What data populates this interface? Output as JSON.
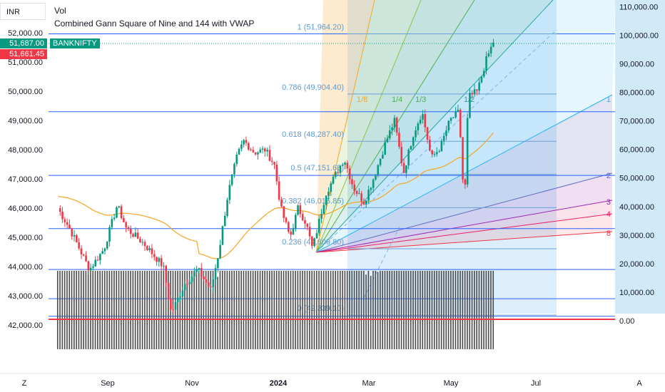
{
  "header": {
    "currency": "INR",
    "indicator1": "Vol",
    "indicator2": "Combined Gann Square of Nine and 144 with VWAP"
  },
  "price_badges": {
    "symbol": "BANKNIFTY",
    "last_price": "51,687.00",
    "second_price": "51,661.45",
    "last_price_color": "#089981",
    "second_price_color": "#f23645"
  },
  "bottom_bar": {
    "left_icon_label": "Z",
    "right_icon_label": "A"
  },
  "colors": {
    "up": "#089981",
    "down": "#f23645",
    "vwap": "#f5a623",
    "fib_line": "#5b9bd5",
    "grid": "#2962ff",
    "volume": "#4a4a4a"
  },
  "chart_data": {
    "type": "candlestick",
    "left_axis": {
      "labels": [
        "52,000.00",
        "51,000.00",
        "50,000.00",
        "49,000.00",
        "48,000.00",
        "47,000.00",
        "46,000.00",
        "45,000.00",
        "44,000.00",
        "43,000.00",
        "42,000.00"
      ],
      "range": [
        41300,
        52500
      ]
    },
    "right_axis": {
      "labels": [
        "110,000.00",
        "100,000.00",
        "90,000.00",
        "80,000.00",
        "70,000.00",
        "60,000.00",
        "50,000.00",
        "40,000.00",
        "30,000.00",
        "20,000.00",
        "10,000.00",
        "0.00"
      ],
      "range": [
        0,
        110000
      ]
    },
    "x_axis": {
      "labels": [
        "Sep",
        "Nov",
        "2024",
        "Mar",
        "May",
        "Jul"
      ]
    },
    "fib_levels": [
      {
        "label": "1 (51,964.20)",
        "price": 51964.2
      },
      {
        "label": "0.786 (49,904.40)",
        "price": 49904.4
      },
      {
        "label": "0.618 (48,287.40)",
        "price": 48287.4
      },
      {
        "label": "0.5 (47,151.65)",
        "price": 47151.65
      },
      {
        "label": "0.382 (46,015.85)",
        "price": 46015.85
      },
      {
        "label": "0.236 (44,609.80)",
        "price": 44609.8
      },
      {
        "label": "0 (42,339.10)",
        "price": 42339.1
      }
    ],
    "horizontal_lines": [
      51964,
      49300,
      47120,
      45300,
      43900,
      42900,
      42300
    ],
    "fan_labels_top": [
      "1/8",
      "1/4",
      "1/3",
      "1/2"
    ],
    "fan_labels_right": [
      "1",
      "2",
      "3",
      "4",
      "8"
    ],
    "close_path_anchors": [
      [
        "2023-08-01",
        46000
      ],
      [
        "2023-08-10",
        45300
      ],
      [
        "2023-08-25",
        43900
      ],
      [
        "2023-09-05",
        44600
      ],
      [
        "2023-09-15",
        46100
      ],
      [
        "2023-09-22",
        45300
      ],
      [
        "2023-10-05",
        44800
      ],
      [
        "2023-10-20",
        44000
      ],
      [
        "2023-10-26",
        42400
      ],
      [
        "2023-11-05",
        43400
      ],
      [
        "2023-11-15",
        43900
      ],
      [
        "2023-11-25",
        43200
      ],
      [
        "2023-12-01",
        44500
      ],
      [
        "2023-12-08",
        46500
      ],
      [
        "2023-12-15",
        47800
      ],
      [
        "2023-12-20",
        48300
      ],
      [
        "2023-12-28",
        47900
      ],
      [
        "2024-01-05",
        48000
      ],
      [
        "2024-01-12",
        47500
      ],
      [
        "2024-01-17",
        46000
      ],
      [
        "2024-01-24",
        45000
      ],
      [
        "2024-01-30",
        46000
      ],
      [
        "2024-02-05",
        45500
      ],
      [
        "2024-02-10",
        44600
      ],
      [
        "2024-02-20",
        46500
      ],
      [
        "2024-02-27",
        47100
      ],
      [
        "2024-03-05",
        47700
      ],
      [
        "2024-03-12",
        46700
      ],
      [
        "2024-03-20",
        46200
      ],
      [
        "2024-03-27",
        47000
      ],
      [
        "2024-04-05",
        48200
      ],
      [
        "2024-04-12",
        49000
      ],
      [
        "2024-04-19",
        47200
      ],
      [
        "2024-04-26",
        48500
      ],
      [
        "2024-05-03",
        49300
      ],
      [
        "2024-05-10",
        47700
      ],
      [
        "2024-05-17",
        48100
      ],
      [
        "2024-05-24",
        49000
      ],
      [
        "2024-05-31",
        49300
      ],
      [
        "2024-06-04",
        46000
      ],
      [
        "2024-06-07",
        49800
      ],
      [
        "2024-06-14",
        50000
      ],
      [
        "2024-06-20",
        51000
      ],
      [
        "2024-06-26",
        51687
      ]
    ]
  }
}
